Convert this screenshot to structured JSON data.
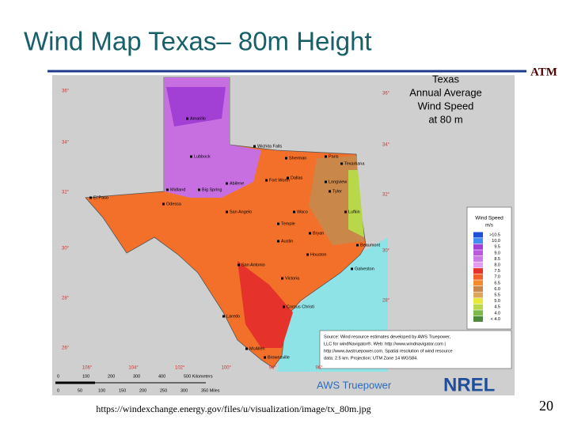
{
  "slide": {
    "title": "Wind Map Texas– 80m Height",
    "logo": "ATM",
    "url": "https://windexchange.energy.gov/files/u/visualization/image/tx_80m.jpg",
    "number": "20"
  },
  "map": {
    "title_lines": [
      "Texas",
      "Annual Average",
      "Wind Speed",
      "at 80 m"
    ],
    "lat_left": [
      "36°",
      "34°",
      "32°",
      "30°",
      "28°",
      "26°"
    ],
    "lat_right": [
      "36°",
      "34°",
      "32°",
      "30°",
      "28°"
    ],
    "lon_bottom": [
      "106°",
      "104°",
      "102°",
      "100°",
      "98°",
      "96°"
    ],
    "scale_km": [
      "0",
      "100",
      "200",
      "300",
      "400",
      "500 Kilometers"
    ],
    "scale_mi": [
      "0",
      "50",
      "100",
      "150",
      "200",
      "250",
      "300",
      "350 Miles"
    ],
    "legend": {
      "title": "Wind Speed",
      "unit": "m/s",
      "entries": [
        {
          "label": ">10.5",
          "color": "#1e4fd8"
        },
        {
          "label": "10.0",
          "color": "#3f8ef0"
        },
        {
          "label": "9.5",
          "color": "#a23fd4"
        },
        {
          "label": "9.0",
          "color": "#b85ae0"
        },
        {
          "label": "8.5",
          "color": "#c97ce8"
        },
        {
          "label": "8.0",
          "color": "#e29df0"
        },
        {
          "label": "7.5",
          "color": "#e5322a"
        },
        {
          "label": "7.0",
          "color": "#f2612a"
        },
        {
          "label": "6.5",
          "color": "#f58a2e"
        },
        {
          "label": "6.0",
          "color": "#c9874a"
        },
        {
          "label": "5.5",
          "color": "#d9a65a"
        },
        {
          "label": "5.0",
          "color": "#e8e83a"
        },
        {
          "label": "4.5",
          "color": "#b8d84a"
        },
        {
          "label": "4.0",
          "color": "#7cb84a"
        },
        {
          "label": "< 4.0",
          "color": "#4a8a3a"
        }
      ]
    },
    "source_lines": [
      "Source: Wind resource estimates developed by AWS Truepower,",
      "LLC for windNavigator®. Web: http://www.windnavigator.com |",
      "http://www.awstruepower.com. Spatial resolution of wind resource",
      "data: 2.5 km. Projection: UTM Zone 14 WGS84."
    ],
    "logos": [
      "AWS Truepower",
      "NREL"
    ],
    "cities": [
      "Amarillo",
      "Lubbock",
      "Wichita Falls",
      "Sherman",
      "Paris",
      "Texarkana",
      "Dallas",
      "Fort Worth",
      "Abilene",
      "Longview",
      "Tyler",
      "Midland",
      "Big Spring",
      "El Paso",
      "Odessa",
      "San Angelo",
      "Waco",
      "Lufkin",
      "Temple",
      "Bryan",
      "Austin",
      "Beaumont",
      "Houston",
      "San Antonio",
      "Galveston",
      "Victoria",
      "Corpus Christi",
      "Laredo",
      "McAllen",
      "Brownsville"
    ]
  }
}
